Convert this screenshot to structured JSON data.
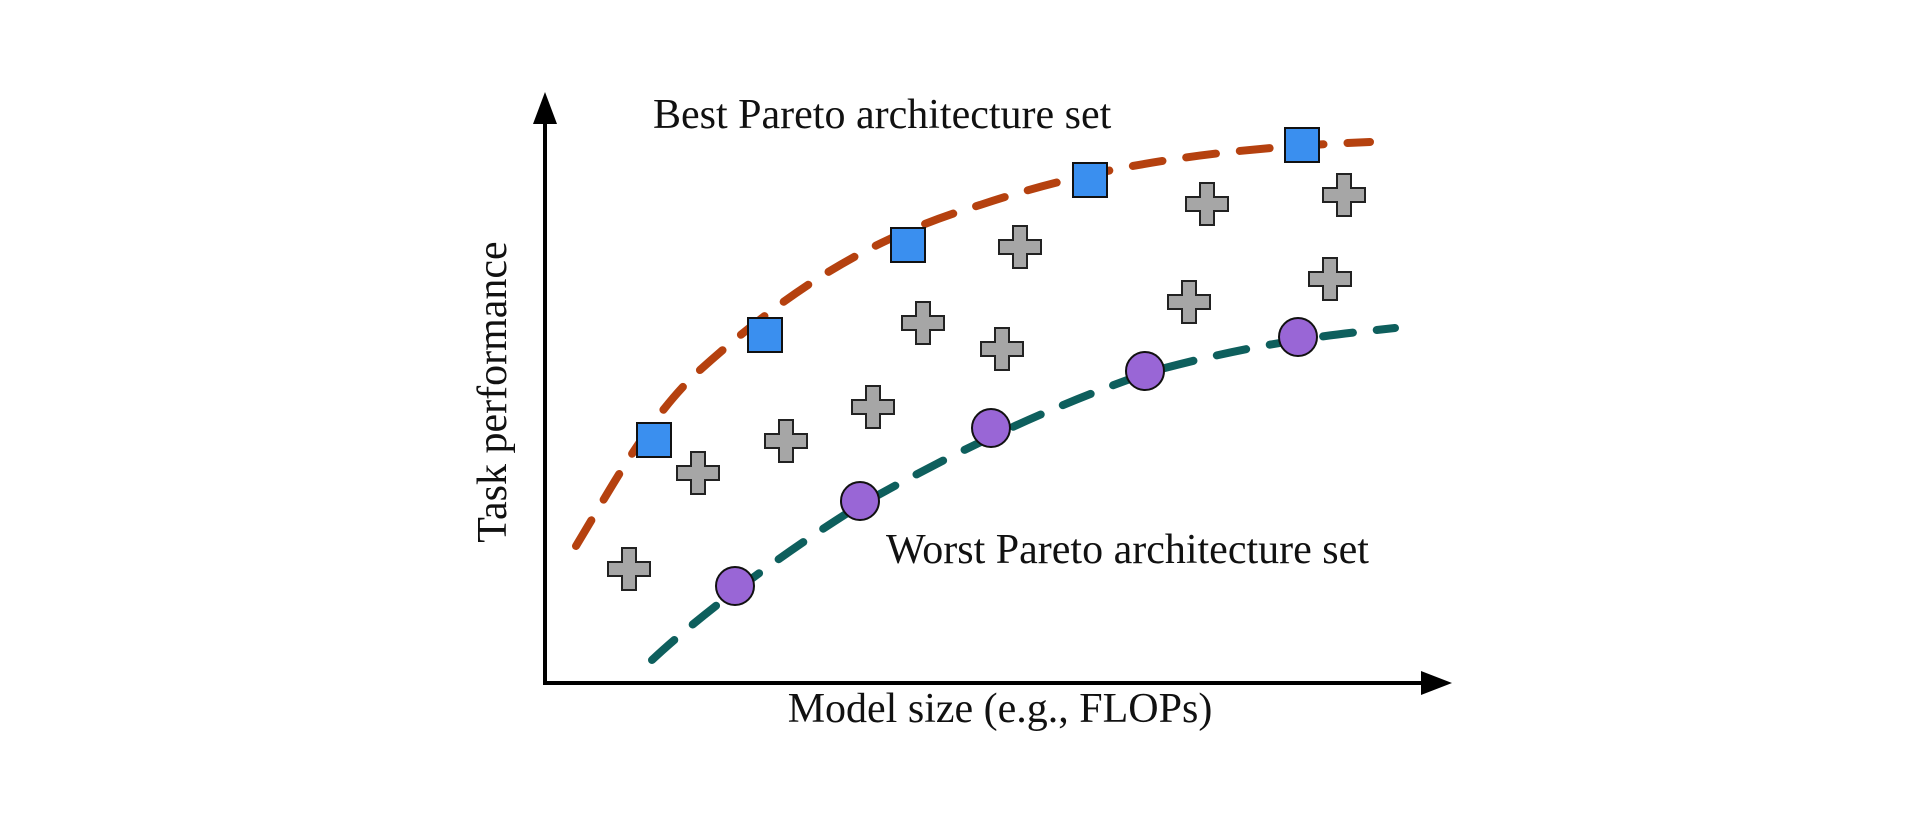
{
  "labels": {
    "best_set": "Best Pareto architecture set",
    "worst_set": "Worst Pareto architecture set",
    "x_axis": "Model size (e.g., FLOPs)",
    "y_axis": "Task performance"
  },
  "colors": {
    "best_curve": "#B5410F",
    "worst_curve": "#0E5F5D",
    "best_marker": "#3A8FEF",
    "worst_marker": "#9966D6",
    "other_marker": "#A6A6A6",
    "axis": "#000000"
  },
  "marker_shapes": {
    "best": "square",
    "worst": "circle",
    "other": "plus"
  }
}
